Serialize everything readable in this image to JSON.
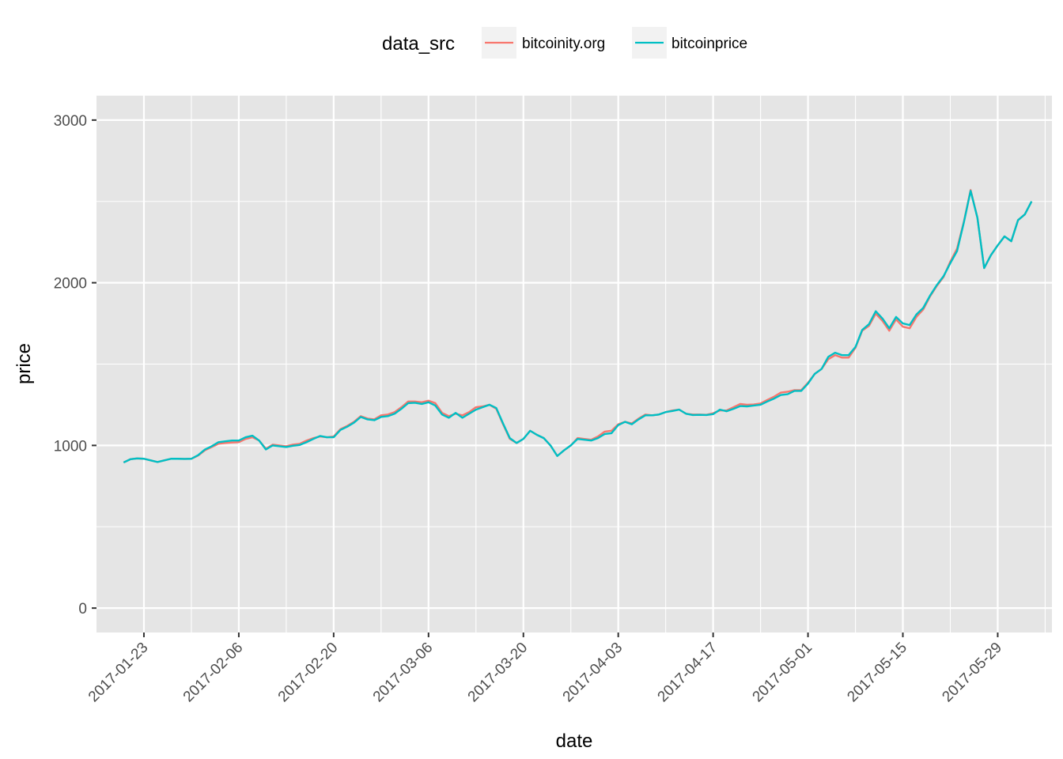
{
  "chart_data": {
    "type": "line",
    "title": "",
    "xlabel": "date",
    "ylabel": "price",
    "legend_title": "data_src",
    "legend_position": "top",
    "grid": true,
    "x_type": "date",
    "xlim": [
      "2017-01-16",
      "2017-06-06"
    ],
    "ylim": [
      -150,
      3150
    ],
    "x_ticks": [
      "2017-01-23",
      "2017-02-06",
      "2017-02-20",
      "2017-03-06",
      "2017-03-20",
      "2017-04-03",
      "2017-04-17",
      "2017-05-01",
      "2017-05-15",
      "2017-05-29"
    ],
    "y_ticks": [
      0,
      1000,
      2000,
      3000
    ],
    "y_tick_labels": [
      "0",
      "1000",
      "2000",
      "3000"
    ],
    "colors": {
      "panel": "#e5e5e5",
      "grid": "#ffffff"
    },
    "series": [
      {
        "name": "bitcoinity.org",
        "color": "#f8766d",
        "points": [
          [
            "2017-01-20",
            895
          ],
          [
            "2017-01-21",
            915
          ],
          [
            "2017-01-22",
            920
          ],
          [
            "2017-01-23",
            918
          ],
          [
            "2017-01-24",
            908
          ],
          [
            "2017-01-25",
            898
          ],
          [
            "2017-01-26",
            908
          ],
          [
            "2017-01-27",
            918
          ],
          [
            "2017-01-28",
            918
          ],
          [
            "2017-01-29",
            917
          ],
          [
            "2017-01-30",
            918
          ],
          [
            "2017-01-31",
            938
          ],
          [
            "2017-02-01",
            970
          ],
          [
            "2017-02-02",
            990
          ],
          [
            "2017-02-03",
            1010
          ],
          [
            "2017-02-04",
            1015
          ],
          [
            "2017-02-05",
            1018
          ],
          [
            "2017-02-06",
            1020
          ],
          [
            "2017-02-07",
            1040
          ],
          [
            "2017-02-08",
            1050
          ],
          [
            "2017-02-09",
            1030
          ],
          [
            "2017-02-10",
            980
          ],
          [
            "2017-02-11",
            1005
          ],
          [
            "2017-02-12",
            1000
          ],
          [
            "2017-02-13",
            995
          ],
          [
            "2017-02-14",
            1005
          ],
          [
            "2017-02-15",
            1010
          ],
          [
            "2017-02-16",
            1030
          ],
          [
            "2017-02-17",
            1045
          ],
          [
            "2017-02-18",
            1055
          ],
          [
            "2017-02-19",
            1050
          ],
          [
            "2017-02-20",
            1055
          ],
          [
            "2017-02-21",
            1100
          ],
          [
            "2017-02-22",
            1120
          ],
          [
            "2017-02-23",
            1145
          ],
          [
            "2017-02-24",
            1180
          ],
          [
            "2017-02-25",
            1165
          ],
          [
            "2017-02-26",
            1160
          ],
          [
            "2017-02-27",
            1185
          ],
          [
            "2017-02-28",
            1190
          ],
          [
            "2017-03-01",
            1205
          ],
          [
            "2017-03-02",
            1235
          ],
          [
            "2017-03-03",
            1270
          ],
          [
            "2017-03-04",
            1270
          ],
          [
            "2017-03-05",
            1265
          ],
          [
            "2017-03-06",
            1275
          ],
          [
            "2017-03-07",
            1260
          ],
          [
            "2017-03-08",
            1200
          ],
          [
            "2017-03-09",
            1180
          ],
          [
            "2017-03-10",
            1195
          ],
          [
            "2017-03-11",
            1185
          ],
          [
            "2017-03-12",
            1205
          ],
          [
            "2017-03-13",
            1235
          ],
          [
            "2017-03-14",
            1240
          ],
          [
            "2017-03-15",
            1250
          ],
          [
            "2017-03-16",
            1225
          ],
          [
            "2017-03-17",
            1130
          ],
          [
            "2017-03-18",
            1040
          ],
          [
            "2017-03-19",
            1015
          ],
          [
            "2017-03-20",
            1040
          ],
          [
            "2017-03-21",
            1090
          ],
          [
            "2017-03-22",
            1065
          ],
          [
            "2017-03-23",
            1045
          ],
          [
            "2017-03-24",
            1000
          ],
          [
            "2017-03-25",
            935
          ],
          [
            "2017-03-26",
            970
          ],
          [
            "2017-03-27",
            1000
          ],
          [
            "2017-03-28",
            1045
          ],
          [
            "2017-03-29",
            1040
          ],
          [
            "2017-03-30",
            1035
          ],
          [
            "2017-03-31",
            1055
          ],
          [
            "2017-04-01",
            1085
          ],
          [
            "2017-04-02",
            1090
          ],
          [
            "2017-04-03",
            1130
          ],
          [
            "2017-04-04",
            1145
          ],
          [
            "2017-04-05",
            1135
          ],
          [
            "2017-04-06",
            1165
          ],
          [
            "2017-04-07",
            1190
          ],
          [
            "2017-04-08",
            1185
          ],
          [
            "2017-04-09",
            1190
          ],
          [
            "2017-04-10",
            1205
          ],
          [
            "2017-04-11",
            1215
          ],
          [
            "2017-04-12",
            1220
          ],
          [
            "2017-04-13",
            1195
          ],
          [
            "2017-04-14",
            1190
          ],
          [
            "2017-04-15",
            1190
          ],
          [
            "2017-04-16",
            1188
          ],
          [
            "2017-04-17",
            1198
          ],
          [
            "2017-04-18",
            1215
          ],
          [
            "2017-04-19",
            1215
          ],
          [
            "2017-04-20",
            1235
          ],
          [
            "2017-04-21",
            1255
          ],
          [
            "2017-04-22",
            1250
          ],
          [
            "2017-04-23",
            1252
          ],
          [
            "2017-04-24",
            1258
          ],
          [
            "2017-04-25",
            1280
          ],
          [
            "2017-04-26",
            1300
          ],
          [
            "2017-04-27",
            1325
          ],
          [
            "2017-04-28",
            1330
          ],
          [
            "2017-04-29",
            1340
          ],
          [
            "2017-04-30",
            1340
          ],
          [
            "2017-05-01",
            1385
          ],
          [
            "2017-05-02",
            1440
          ],
          [
            "2017-05-03",
            1470
          ],
          [
            "2017-05-04",
            1530
          ],
          [
            "2017-05-05",
            1555
          ],
          [
            "2017-05-06",
            1540
          ],
          [
            "2017-05-07",
            1540
          ],
          [
            "2017-05-08",
            1600
          ],
          [
            "2017-05-09",
            1705
          ],
          [
            "2017-05-10",
            1735
          ],
          [
            "2017-05-11",
            1810
          ],
          [
            "2017-05-12",
            1765
          ],
          [
            "2017-05-13",
            1705
          ],
          [
            "2017-05-14",
            1775
          ],
          [
            "2017-05-15",
            1730
          ],
          [
            "2017-05-16",
            1720
          ],
          [
            "2017-05-17",
            1790
          ],
          [
            "2017-05-18",
            1835
          ],
          [
            "2017-05-19",
            1915
          ],
          [
            "2017-05-20",
            1980
          ],
          [
            "2017-05-21",
            2035
          ],
          [
            "2017-05-22",
            2130
          ],
          [
            "2017-05-23",
            2210
          ],
          [
            "2017-05-24",
            2375
          ],
          [
            "2017-05-25",
            2570
          ],
          [
            "2017-05-26",
            2400
          ],
          [
            "2017-05-27",
            2090
          ],
          [
            "2017-05-28",
            2170
          ],
          [
            "2017-05-29",
            2230
          ],
          [
            "2017-05-30",
            2285
          ],
          [
            "2017-05-31",
            2255
          ],
          [
            "2017-06-01",
            2385
          ],
          [
            "2017-06-02",
            2420
          ],
          [
            "2017-06-03",
            2500
          ]
        ]
      },
      {
        "name": "bitcoinprice",
        "color": "#00bfc4",
        "points": [
          [
            "2017-01-20",
            895
          ],
          [
            "2017-01-21",
            915
          ],
          [
            "2017-01-22",
            920
          ],
          [
            "2017-01-23",
            918
          ],
          [
            "2017-01-24",
            908
          ],
          [
            "2017-01-25",
            898
          ],
          [
            "2017-01-26",
            908
          ],
          [
            "2017-01-27",
            918
          ],
          [
            "2017-01-28",
            918
          ],
          [
            "2017-01-29",
            917
          ],
          [
            "2017-01-30",
            918
          ],
          [
            "2017-01-31",
            940
          ],
          [
            "2017-02-01",
            975
          ],
          [
            "2017-02-02",
            995
          ],
          [
            "2017-02-03",
            1020
          ],
          [
            "2017-02-04",
            1025
          ],
          [
            "2017-02-05",
            1030
          ],
          [
            "2017-02-06",
            1030
          ],
          [
            "2017-02-07",
            1050
          ],
          [
            "2017-02-08",
            1060
          ],
          [
            "2017-02-09",
            1030
          ],
          [
            "2017-02-10",
            975
          ],
          [
            "2017-02-11",
            1000
          ],
          [
            "2017-02-12",
            995
          ],
          [
            "2017-02-13",
            990
          ],
          [
            "2017-02-14",
            998
          ],
          [
            "2017-02-15",
            1003
          ],
          [
            "2017-02-16",
            1020
          ],
          [
            "2017-02-17",
            1040
          ],
          [
            "2017-02-18",
            1058
          ],
          [
            "2017-02-19",
            1050
          ],
          [
            "2017-02-20",
            1050
          ],
          [
            "2017-02-21",
            1095
          ],
          [
            "2017-02-22",
            1115
          ],
          [
            "2017-02-23",
            1140
          ],
          [
            "2017-02-24",
            1175
          ],
          [
            "2017-02-25",
            1160
          ],
          [
            "2017-02-26",
            1155
          ],
          [
            "2017-02-27",
            1175
          ],
          [
            "2017-02-28",
            1180
          ],
          [
            "2017-03-01",
            1195
          ],
          [
            "2017-03-02",
            1225
          ],
          [
            "2017-03-03",
            1260
          ],
          [
            "2017-03-04",
            1262
          ],
          [
            "2017-03-05",
            1255
          ],
          [
            "2017-03-06",
            1265
          ],
          [
            "2017-03-07",
            1245
          ],
          [
            "2017-03-08",
            1190
          ],
          [
            "2017-03-09",
            1170
          ],
          [
            "2017-03-10",
            1200
          ],
          [
            "2017-03-11",
            1170
          ],
          [
            "2017-03-12",
            1195
          ],
          [
            "2017-03-13",
            1220
          ],
          [
            "2017-03-14",
            1235
          ],
          [
            "2017-03-15",
            1250
          ],
          [
            "2017-03-16",
            1230
          ],
          [
            "2017-03-17",
            1135
          ],
          [
            "2017-03-18",
            1045
          ],
          [
            "2017-03-19",
            1015
          ],
          [
            "2017-03-20",
            1040
          ],
          [
            "2017-03-21",
            1090
          ],
          [
            "2017-03-22",
            1065
          ],
          [
            "2017-03-23",
            1045
          ],
          [
            "2017-03-24",
            1000
          ],
          [
            "2017-03-25",
            935
          ],
          [
            "2017-03-26",
            970
          ],
          [
            "2017-03-27",
            1000
          ],
          [
            "2017-03-28",
            1040
          ],
          [
            "2017-03-29",
            1035
          ],
          [
            "2017-03-30",
            1030
          ],
          [
            "2017-03-31",
            1045
          ],
          [
            "2017-04-01",
            1070
          ],
          [
            "2017-04-02",
            1075
          ],
          [
            "2017-04-03",
            1125
          ],
          [
            "2017-04-04",
            1145
          ],
          [
            "2017-04-05",
            1130
          ],
          [
            "2017-04-06",
            1160
          ],
          [
            "2017-04-07",
            1185
          ],
          [
            "2017-04-08",
            1185
          ],
          [
            "2017-04-09",
            1190
          ],
          [
            "2017-04-10",
            1205
          ],
          [
            "2017-04-11",
            1212
          ],
          [
            "2017-04-12",
            1220
          ],
          [
            "2017-04-13",
            1195
          ],
          [
            "2017-04-14",
            1187
          ],
          [
            "2017-04-15",
            1188
          ],
          [
            "2017-04-16",
            1187
          ],
          [
            "2017-04-17",
            1192
          ],
          [
            "2017-04-18",
            1220
          ],
          [
            "2017-04-19",
            1210
          ],
          [
            "2017-04-20",
            1225
          ],
          [
            "2017-04-21",
            1242
          ],
          [
            "2017-04-22",
            1240
          ],
          [
            "2017-04-23",
            1245
          ],
          [
            "2017-04-24",
            1250
          ],
          [
            "2017-04-25",
            1270
          ],
          [
            "2017-04-26",
            1288
          ],
          [
            "2017-04-27",
            1310
          ],
          [
            "2017-04-28",
            1315
          ],
          [
            "2017-04-29",
            1335
          ],
          [
            "2017-04-30",
            1335
          ],
          [
            "2017-05-01",
            1380
          ],
          [
            "2017-05-02",
            1440
          ],
          [
            "2017-05-03",
            1470
          ],
          [
            "2017-05-04",
            1545
          ],
          [
            "2017-05-05",
            1570
          ],
          [
            "2017-05-06",
            1555
          ],
          [
            "2017-05-07",
            1555
          ],
          [
            "2017-05-08",
            1605
          ],
          [
            "2017-05-09",
            1710
          ],
          [
            "2017-05-10",
            1745
          ],
          [
            "2017-05-11",
            1825
          ],
          [
            "2017-05-12",
            1780
          ],
          [
            "2017-05-13",
            1720
          ],
          [
            "2017-05-14",
            1790
          ],
          [
            "2017-05-15",
            1750
          ],
          [
            "2017-05-16",
            1740
          ],
          [
            "2017-05-17",
            1805
          ],
          [
            "2017-05-18",
            1845
          ],
          [
            "2017-05-19",
            1920
          ],
          [
            "2017-05-20",
            1985
          ],
          [
            "2017-05-21",
            2040
          ],
          [
            "2017-05-22",
            2120
          ],
          [
            "2017-05-23",
            2195
          ],
          [
            "2017-05-24",
            2370
          ],
          [
            "2017-05-25",
            2565
          ],
          [
            "2017-05-26",
            2400
          ],
          [
            "2017-05-27",
            2090
          ],
          [
            "2017-05-28",
            2170
          ],
          [
            "2017-05-29",
            2230
          ],
          [
            "2017-05-30",
            2285
          ],
          [
            "2017-05-31",
            2255
          ],
          [
            "2017-06-01",
            2385
          ],
          [
            "2017-06-02",
            2420
          ],
          [
            "2017-06-03",
            2500
          ]
        ]
      }
    ]
  }
}
